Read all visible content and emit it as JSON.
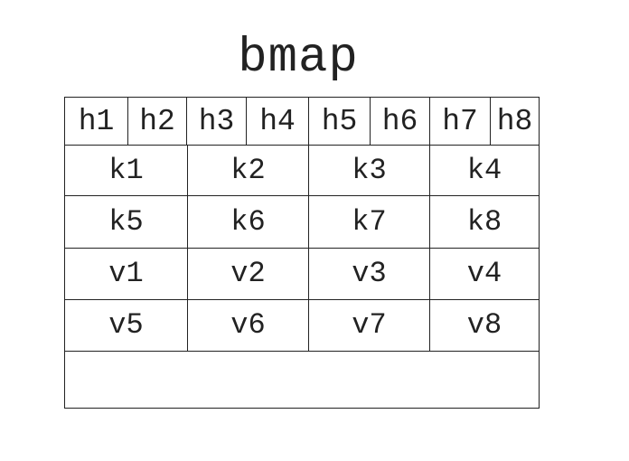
{
  "title": "bmap",
  "tophash": [
    "h1",
    "h2",
    "h3",
    "h4",
    "h5",
    "h6",
    "h7",
    "h8"
  ],
  "keys": [
    [
      "k1",
      "k2",
      "k3",
      "k4"
    ],
    [
      "k5",
      "k6",
      "k7",
      "k8"
    ]
  ],
  "values": [
    [
      "v1",
      "v2",
      "v3",
      "v4"
    ],
    [
      "v5",
      "v6",
      "v7",
      "v8"
    ]
  ],
  "overflow": ""
}
